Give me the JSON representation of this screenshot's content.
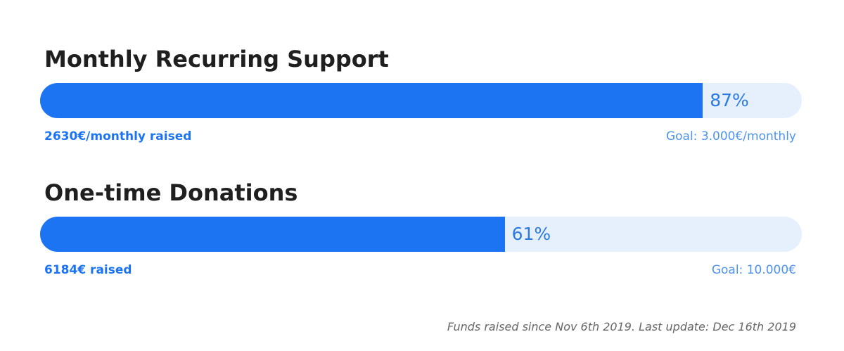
{
  "sections": [
    {
      "title": "Monthly Recurring Support",
      "progress": {
        "value": 87,
        "label": "87%"
      },
      "raised": "2630€/monthly raised",
      "goal": "Goal: 3.000€/monthly"
    },
    {
      "title": "One-time Donations",
      "progress": {
        "value": 61,
        "label": "61%"
      },
      "raised": "6184€ raised",
      "goal": "Goal: 10.000€"
    }
  ],
  "footer": "Funds raised since Nov 6th 2019. Last update: Dec 16th 2019"
}
